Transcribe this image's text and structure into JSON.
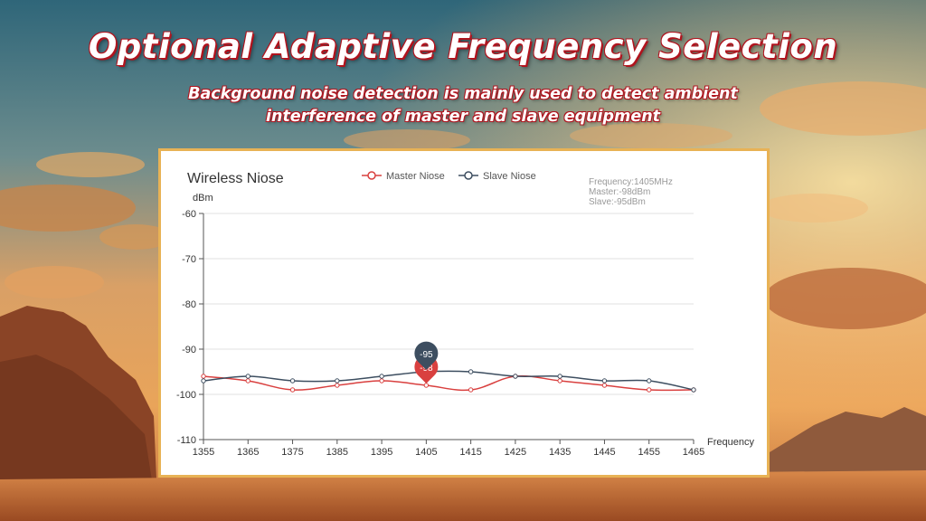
{
  "header": {
    "title": "Optional Adaptive Frequency Selection",
    "subtitle_line1": "Background noise detection is mainly used to detect ambient",
    "subtitle_line2": "interference of master and slave equipment"
  },
  "colors": {
    "master": "#d9403f",
    "slave": "#3d4e60",
    "axis": "#555555",
    "grid": "#e2e2e2",
    "panel_border": "#e8b255"
  },
  "chart_data": {
    "type": "line",
    "title": "Wireless Niose",
    "ylabel": "dBm",
    "xlabel": "Frequency",
    "x": [
      1355,
      1365,
      1375,
      1385,
      1395,
      1405,
      1415,
      1425,
      1435,
      1445,
      1455,
      1465
    ],
    "xlim": [
      1355,
      1465
    ],
    "ylim": [
      -110,
      -60
    ],
    "yticks": [
      -60,
      -70,
      -80,
      -90,
      -100,
      -110
    ],
    "grid": true,
    "legend_position": "top",
    "series": [
      {
        "name": "Master Niose",
        "values": [
          -96,
          -97,
          -99,
          -98,
          -97,
          -98,
          -99,
          -96,
          -97,
          -98,
          -99,
          -99
        ]
      },
      {
        "name": "Slave Niose",
        "values": [
          -97,
          -96,
          -97,
          -97,
          -96,
          -95,
          -95,
          -96,
          -96,
          -97,
          -97,
          -99
        ]
      }
    ],
    "tooltip": {
      "line1": "Frequency:1405MHz",
      "line2": "Master:-98dBm",
      "line3": "Slave:-95dBm"
    },
    "markers": [
      {
        "series": "Slave Niose",
        "x": 1405,
        "label": "-95"
      },
      {
        "series": "Master Niose",
        "x": 1405,
        "label": "-98"
      }
    ]
  }
}
